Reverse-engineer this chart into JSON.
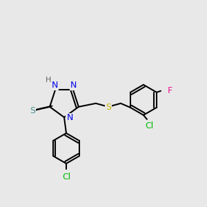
{
  "bg_color": "#e8e8e8",
  "bond_color": "#000000",
  "bond_width": 1.5,
  "atom_colors": {
    "N": "#0000ee",
    "S_thiol": "#4a9090",
    "S_ether": "#c8b400",
    "Cl": "#00bb00",
    "F": "#ee1090",
    "H": "#606060",
    "C": "#000000"
  },
  "font_size": 9,
  "fig_size": [
    3.0,
    3.0
  ],
  "dpi": 100
}
